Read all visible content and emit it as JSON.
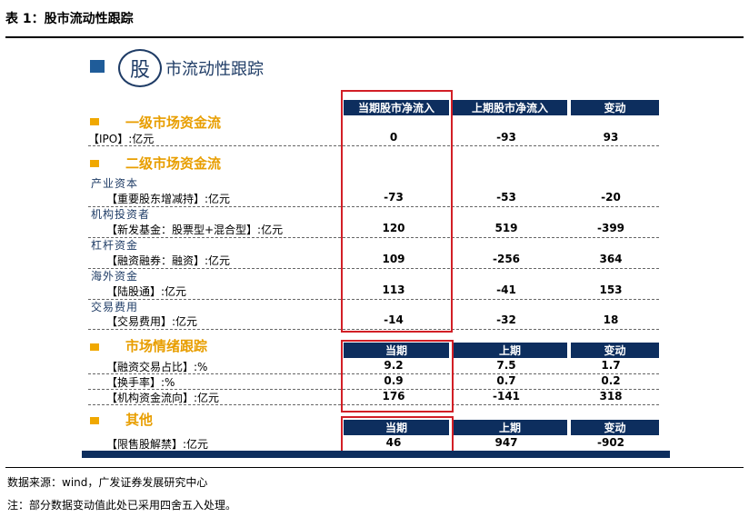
{
  "table_title": "表 1：股市流动性跟踪",
  "header": {
    "circle_char": "股",
    "title": "市流动性跟踪"
  },
  "columns_top": [
    "当期股市净流入",
    "上期股市净流入",
    "变动"
  ],
  "columns_mid": [
    "当期",
    "上期",
    "变动"
  ],
  "sections": {
    "primary": {
      "title": "一级市场资金流",
      "rows": [
        {
          "label": "【IPO】:亿元",
          "values": [
            "0",
            "-93",
            "93"
          ]
        }
      ]
    },
    "secondary": {
      "title": "二级市场资金流",
      "groups": [
        {
          "category": "产业资本",
          "label": "【重要股东增减持】:亿元",
          "values": [
            "-73",
            "-53",
            "-20"
          ]
        },
        {
          "category": "机构投资者",
          "label": "【新发基金：股票型+混合型】:亿元",
          "values": [
            "120",
            "519",
            "-399"
          ]
        },
        {
          "category": "杠杆资金",
          "label": "【融资融券：融资】:亿元",
          "values": [
            "109",
            "-256",
            "364"
          ]
        },
        {
          "category": "海外资金",
          "label": "【陆股通】:亿元",
          "values": [
            "113",
            "-41",
            "153"
          ]
        },
        {
          "category": "交易费用",
          "label": "【交易费用】:亿元",
          "values": [
            "-14",
            "-32",
            "18"
          ]
        }
      ]
    },
    "sentiment": {
      "title": "市场情绪跟踪",
      "rows": [
        {
          "label": "【融资交易占比】:%",
          "values": [
            "9.2",
            "7.5",
            "1.7"
          ]
        },
        {
          "label": "【换手率】:%",
          "values": [
            "0.9",
            "0.7",
            "0.2"
          ]
        },
        {
          "label": "【机构资金流向】:亿元",
          "values": [
            "176",
            "-141",
            "318"
          ]
        }
      ]
    },
    "other": {
      "title": "其他",
      "rows": [
        {
          "label": "【限售股解禁】:亿元",
          "values": [
            "46",
            "947",
            "-902"
          ]
        }
      ]
    }
  },
  "source": "数据来源：wind，广发证券发展研究中心",
  "note": "注：部分数据变动值此处已采用四舍五入处理。",
  "colors": {
    "navy": "#0d2e5e",
    "orange": "#e89e00",
    "red": "#d21f26"
  }
}
